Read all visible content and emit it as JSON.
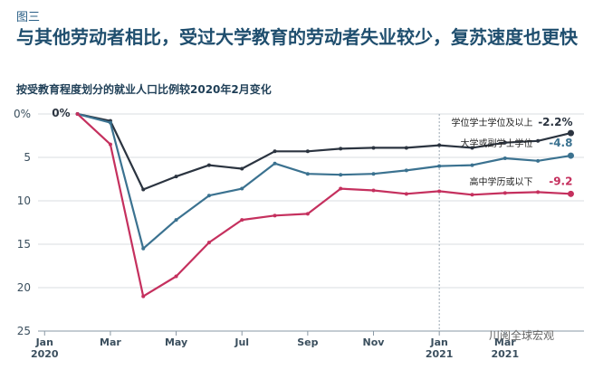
{
  "figure_label": "图三",
  "title": "与其他劳动者相比，受过大学教育的劳动者失业较少，复苏速度也更快",
  "watermark": "川阅全球宏观",
  "colors": {
    "bachelor": "#2b3440",
    "some_college": "#3b7290",
    "high_school": "#c5305e",
    "grid": "#d8dde2"
  },
  "chart_data": {
    "type": "line",
    "title": "按受教育程度划分的就业人口比例较2020年2月变化",
    "y_ticks": [
      "0%",
      "5",
      "10",
      "15",
      "20",
      "25"
    ],
    "ylim": [
      0,
      25
    ],
    "y_inverted": true,
    "x_ticks": [
      {
        "label": "Jan",
        "sub": "2020",
        "month": 0
      },
      {
        "label": "Mar",
        "sub": "",
        "month": 2
      },
      {
        "label": "May",
        "sub": "",
        "month": 4
      },
      {
        "label": "Jul",
        "sub": "",
        "month": 6
      },
      {
        "label": "Sep",
        "sub": "",
        "month": 8
      },
      {
        "label": "Nov",
        "sub": "",
        "month": 10
      },
      {
        "label": "Jan",
        "sub": "2021",
        "month": 12
      },
      {
        "label": "Mar",
        "sub": "2021",
        "month": 14
      }
    ],
    "start_label": "0%",
    "series": [
      {
        "name": "学位学士学位及以上",
        "end_value": "-2.2%",
        "color_key": "bachelor",
        "points": [
          [
            1,
            0
          ],
          [
            2,
            0.8
          ],
          [
            3,
            8.7
          ],
          [
            4,
            7.2
          ],
          [
            5,
            5.9
          ],
          [
            6,
            6.3
          ],
          [
            7,
            4.3
          ],
          [
            8,
            4.3
          ],
          [
            9,
            4.0
          ],
          [
            10,
            3.9
          ],
          [
            11,
            3.9
          ],
          [
            12,
            3.6
          ],
          [
            13,
            3.9
          ],
          [
            14,
            3.3
          ],
          [
            15,
            3.1
          ],
          [
            16,
            2.2
          ]
        ]
      },
      {
        "name": "大学或副学士学位",
        "end_value": "-4.8",
        "color_key": "some_college",
        "points": [
          [
            1,
            0
          ],
          [
            2,
            1.0
          ],
          [
            3,
            15.5
          ],
          [
            4,
            12.2
          ],
          [
            5,
            9.4
          ],
          [
            6,
            8.6
          ],
          [
            7,
            5.7
          ],
          [
            8,
            6.9
          ],
          [
            9,
            7.0
          ],
          [
            10,
            6.9
          ],
          [
            11,
            6.5
          ],
          [
            12,
            6.0
          ],
          [
            13,
            5.9
          ],
          [
            14,
            5.1
          ],
          [
            15,
            5.4
          ],
          [
            16,
            4.8
          ]
        ]
      },
      {
        "name": "高中学历或以下",
        "end_value": "-9.2",
        "color_key": "high_school",
        "points": [
          [
            1,
            0
          ],
          [
            2,
            3.5
          ],
          [
            3,
            21.0
          ],
          [
            4,
            18.7
          ],
          [
            5,
            14.8
          ],
          [
            6,
            12.2
          ],
          [
            7,
            11.7
          ],
          [
            8,
            11.5
          ],
          [
            9,
            8.6
          ],
          [
            10,
            8.8
          ],
          [
            11,
            9.2
          ],
          [
            12,
            8.9
          ],
          [
            13,
            9.3
          ],
          [
            14,
            9.1
          ],
          [
            15,
            9.0
          ],
          [
            16,
            9.2
          ]
        ]
      }
    ]
  }
}
